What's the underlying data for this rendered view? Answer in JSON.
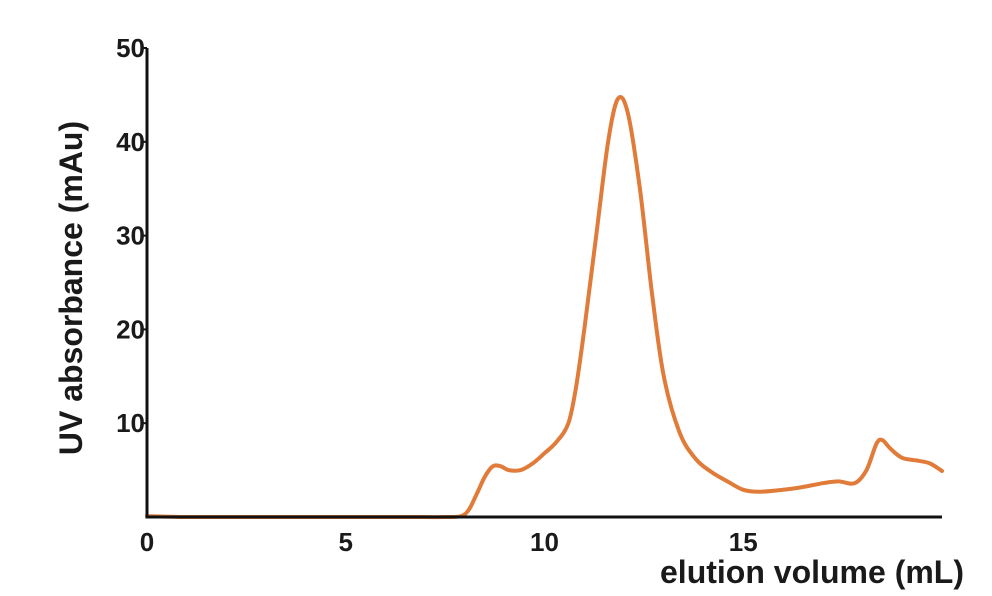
{
  "chart_data": {
    "type": "line",
    "title": "",
    "xlabel": "elution volume (mL)",
    "ylabel": "UV absorbance (mAu)",
    "xlim": [
      0,
      20
    ],
    "ylim": [
      0,
      50
    ],
    "x_ticks": [
      0,
      5,
      10,
      15
    ],
    "y_ticks": [
      10,
      20,
      30,
      40,
      50
    ],
    "grid": false,
    "legend": "none",
    "series": [
      {
        "color": "#e07b39",
        "points": [
          [
            0.0,
            0.1
          ],
          [
            1.0,
            0.0
          ],
          [
            3.0,
            0.0
          ],
          [
            5.0,
            0.0
          ],
          [
            6.5,
            0.0
          ],
          [
            7.5,
            0.0
          ],
          [
            7.9,
            0.1
          ],
          [
            8.1,
            0.8
          ],
          [
            8.3,
            2.5
          ],
          [
            8.5,
            4.3
          ],
          [
            8.7,
            5.4
          ],
          [
            8.9,
            5.4
          ],
          [
            9.1,
            5.0
          ],
          [
            9.4,
            5.0
          ],
          [
            9.7,
            5.7
          ],
          [
            10.0,
            6.8
          ],
          [
            10.3,
            8.0
          ],
          [
            10.6,
            10.0
          ],
          [
            10.8,
            14.0
          ],
          [
            11.0,
            20.0
          ],
          [
            11.3,
            30.0
          ],
          [
            11.6,
            40.0
          ],
          [
            11.85,
            44.6
          ],
          [
            12.1,
            43.0
          ],
          [
            12.4,
            35.0
          ],
          [
            12.7,
            24.0
          ],
          [
            13.0,
            15.0
          ],
          [
            13.4,
            9.0
          ],
          [
            13.8,
            6.2
          ],
          [
            14.2,
            4.8
          ],
          [
            14.6,
            3.8
          ],
          [
            15.0,
            2.9
          ],
          [
            15.4,
            2.7
          ],
          [
            16.0,
            2.9
          ],
          [
            16.5,
            3.2
          ],
          [
            17.0,
            3.6
          ],
          [
            17.4,
            3.8
          ],
          [
            17.8,
            3.6
          ],
          [
            18.1,
            5.0
          ],
          [
            18.35,
            7.8
          ],
          [
            18.5,
            8.2
          ],
          [
            18.7,
            7.3
          ],
          [
            19.0,
            6.3
          ],
          [
            19.4,
            6.0
          ],
          [
            19.7,
            5.7
          ],
          [
            20.0,
            4.9
          ]
        ]
      }
    ]
  }
}
